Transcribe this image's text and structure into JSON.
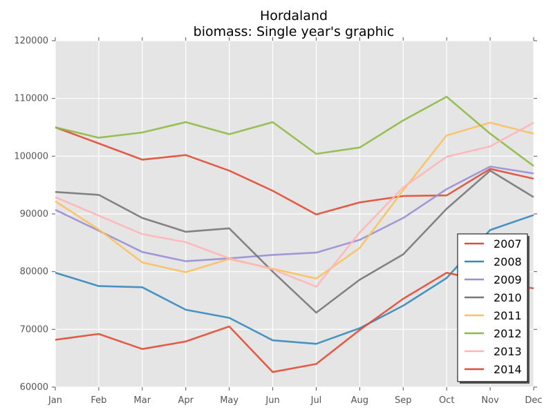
{
  "chart_data": {
    "type": "line",
    "title": "Hordaland",
    "subtitle": "biomass: Single year's graphic",
    "xlabel": "",
    "ylabel": "",
    "categories": [
      "Jan",
      "Feb",
      "Mar",
      "Apr",
      "May",
      "Jun",
      "Jul",
      "Aug",
      "Sep",
      "Oct",
      "Nov",
      "Dec"
    ],
    "ylim": [
      60000,
      120000
    ],
    "yticks": [
      60000,
      70000,
      80000,
      90000,
      100000,
      110000,
      120000
    ],
    "ytick_labels": [
      "60000",
      "70000",
      "80000",
      "90000",
      "100000",
      "110000",
      "120000"
    ],
    "grid": true,
    "legend_position": "lower-right",
    "series": [
      {
        "name": "2007",
        "color": "#E24A33",
        "values": [
          105000,
          102200,
          99400,
          100200,
          97500,
          94000,
          89900,
          92000,
          93100,
          93200,
          97800,
          96100
        ]
      },
      {
        "name": "2008",
        "color": "#348ABD",
        "values": [
          79800,
          77500,
          77300,
          73400,
          72000,
          68100,
          67500,
          70200,
          74100,
          78900,
          87200,
          89800
        ]
      },
      {
        "name": "2009",
        "color": "#988ED5",
        "values": [
          90700,
          87100,
          83400,
          81800,
          82300,
          82900,
          83300,
          85500,
          89300,
          94300,
          98200,
          97000
        ]
      },
      {
        "name": "2010",
        "color": "#777777",
        "values": [
          93800,
          93300,
          89300,
          86900,
          87500,
          80000,
          72900,
          78600,
          83000,
          90900,
          97500,
          92900
        ]
      },
      {
        "name": "2011",
        "color": "#FBC15E",
        "values": [
          92200,
          87300,
          81600,
          79900,
          82200,
          80500,
          78800,
          84100,
          94100,
          103600,
          105800,
          103900
        ]
      },
      {
        "name": "2012",
        "color": "#8EBA42",
        "values": [
          105000,
          103200,
          104100,
          105900,
          103800,
          105900,
          100400,
          101500,
          106200,
          110300,
          103900,
          98300
        ]
      },
      {
        "name": "2013",
        "color": "#FFB5B8",
        "values": [
          92900,
          89700,
          86500,
          85100,
          82300,
          80400,
          77400,
          86800,
          94600,
          99900,
          101700,
          105800
        ]
      },
      {
        "name": "2014",
        "color": "#E24A33",
        "values": [
          68200,
          69200,
          66600,
          67900,
          70500,
          62600,
          64000,
          69900,
          75300,
          79800,
          78200,
          77100
        ]
      }
    ]
  }
}
